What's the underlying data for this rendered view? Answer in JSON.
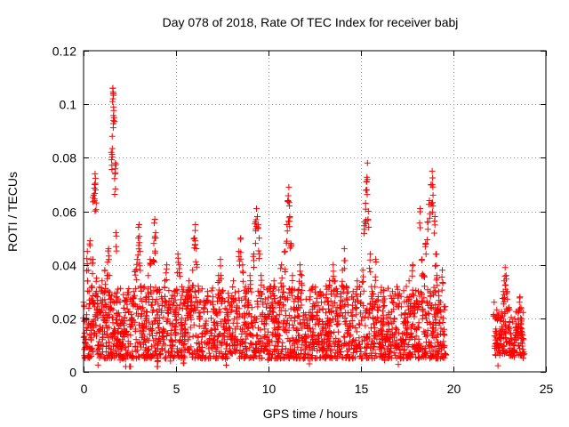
{
  "chart_data": {
    "type": "scatter",
    "title": "Day 078 of 2018, Rate Of TEC Index for receiver babj",
    "xlabel": "GPS time / hours",
    "ylabel": "ROTI / TECUs",
    "xlim": [
      0,
      25
    ],
    "ylim": [
      0,
      0.12
    ],
    "xticks": [
      0,
      5,
      10,
      15,
      20,
      25
    ],
    "xtick_labels": [
      "0",
      "5",
      "10",
      "15",
      "20",
      "25"
    ],
    "yticks": [
      0,
      0.02,
      0.04,
      0.06,
      0.08,
      0.1,
      0.12
    ],
    "ytick_labels": [
      "0",
      "0.02",
      "0.04",
      "0.06",
      "0.08",
      "0.1",
      "0.12"
    ],
    "grid": true,
    "marker": "+",
    "color": "#ff0000",
    "series": [
      {
        "name": "ROTI",
        "points": [
          [
            0.0,
            0.026
          ],
          [
            0.1,
            0.012
          ],
          [
            0.15,
            0.02
          ],
          [
            0.2,
            0.045
          ],
          [
            0.25,
            0.038
          ],
          [
            0.3,
            0.03
          ],
          [
            0.35,
            0.049
          ],
          [
            0.4,
            0.018
          ],
          [
            0.45,
            0.032
          ],
          [
            0.5,
            0.042
          ],
          [
            0.55,
            0.066
          ],
          [
            0.6,
            0.07
          ],
          [
            0.62,
            0.074
          ],
          [
            0.65,
            0.068
          ],
          [
            0.7,
            0.035
          ],
          [
            0.75,
            0.028
          ],
          [
            0.8,
            0.01
          ],
          [
            0.85,
            0.022
          ],
          [
            0.9,
            0.016
          ],
          [
            0.95,
            0.03
          ],
          [
            1.0,
            0.034
          ],
          [
            1.05,
            0.013
          ],
          [
            1.1,
            0.024
          ],
          [
            1.15,
            0.038
          ],
          [
            1.2,
            0.03
          ],
          [
            1.25,
            0.019
          ],
          [
            1.3,
            0.041
          ],
          [
            1.35,
            0.046
          ],
          [
            1.4,
            0.036
          ],
          [
            1.45,
            0.026
          ],
          [
            1.5,
            0.082
          ],
          [
            1.55,
            0.088
          ],
          [
            1.58,
            0.106
          ],
          [
            1.6,
            0.104
          ],
          [
            1.62,
            0.099
          ],
          [
            1.65,
            0.095
          ],
          [
            1.7,
            0.074
          ],
          [
            1.72,
            0.078
          ],
          [
            1.75,
            0.052
          ],
          [
            1.8,
            0.028
          ],
          [
            1.85,
            0.015
          ],
          [
            1.9,
            0.022
          ],
          [
            1.95,
            0.011
          ],
          [
            2.0,
            0.018
          ],
          [
            2.1,
            0.012
          ],
          [
            2.2,
            0.02
          ],
          [
            2.3,
            0.008
          ],
          [
            2.4,
            0.014
          ],
          [
            2.5,
            0.006
          ],
          [
            2.6,
            0.02
          ],
          [
            2.7,
            0.03
          ],
          [
            2.8,
            0.038
          ],
          [
            2.9,
            0.042
          ],
          [
            2.95,
            0.05
          ],
          [
            3.0,
            0.055
          ],
          [
            3.05,
            0.045
          ],
          [
            3.1,
            0.032
          ],
          [
            3.2,
            0.024
          ],
          [
            3.3,
            0.018
          ],
          [
            3.4,
            0.028
          ],
          [
            3.5,
            0.036
          ],
          [
            3.6,
            0.042
          ],
          [
            3.7,
            0.025
          ],
          [
            3.8,
            0.048
          ],
          [
            3.85,
            0.057
          ],
          [
            3.9,
            0.052
          ],
          [
            3.95,
            0.03
          ],
          [
            4.0,
            0.004
          ],
          [
            4.05,
            0.012
          ],
          [
            4.1,
            0.02
          ],
          [
            4.2,
            0.028
          ],
          [
            4.3,
            0.016
          ],
          [
            4.4,
            0.034
          ],
          [
            4.5,
            0.04
          ],
          [
            4.6,
            0.025
          ],
          [
            4.7,
            0.012
          ],
          [
            4.8,
            0.018
          ],
          [
            4.9,
            0.03
          ],
          [
            5.0,
            0.022
          ],
          [
            5.1,
            0.044
          ],
          [
            5.2,
            0.04
          ],
          [
            5.3,
            0.02
          ],
          [
            5.4,
            0.01
          ],
          [
            5.5,
            0.016
          ],
          [
            5.6,
            0.028
          ],
          [
            5.7,
            0.034
          ],
          [
            5.8,
            0.026
          ],
          [
            5.9,
            0.038
          ],
          [
            6.0,
            0.05
          ],
          [
            6.05,
            0.055
          ],
          [
            6.1,
            0.046
          ],
          [
            6.2,
            0.032
          ],
          [
            6.3,
            0.022
          ],
          [
            6.4,
            0.014
          ],
          [
            6.5,
            0.024
          ],
          [
            6.6,
            0.018
          ],
          [
            6.7,
            0.03
          ],
          [
            6.8,
            0.012
          ],
          [
            6.9,
            0.02
          ],
          [
            7.0,
            0.028
          ],
          [
            7.1,
            0.016
          ],
          [
            7.2,
            0.022
          ],
          [
            7.3,
            0.036
          ],
          [
            7.4,
            0.042
          ],
          [
            7.5,
            0.03
          ],
          [
            7.6,
            0.018
          ],
          [
            7.7,
            0.01
          ],
          [
            7.8,
            0.022
          ],
          [
            7.9,
            0.014
          ],
          [
            8.0,
            0.026
          ],
          [
            8.1,
            0.034
          ],
          [
            8.2,
            0.016
          ],
          [
            8.3,
            0.024
          ],
          [
            8.4,
            0.045
          ],
          [
            8.5,
            0.05
          ],
          [
            8.6,
            0.04
          ],
          [
            8.7,
            0.028
          ],
          [
            8.8,
            0.018
          ],
          [
            8.9,
            0.03
          ],
          [
            9.0,
            0.036
          ],
          [
            9.1,
            0.024
          ],
          [
            9.2,
            0.044
          ],
          [
            9.3,
            0.056
          ],
          [
            9.35,
            0.061
          ],
          [
            9.4,
            0.058
          ],
          [
            9.5,
            0.05
          ],
          [
            9.6,
            0.036
          ],
          [
            9.7,
            0.026
          ],
          [
            9.8,
            0.016
          ],
          [
            9.9,
            0.02
          ],
          [
            10.0,
            0.012
          ],
          [
            10.1,
            0.03
          ],
          [
            10.2,
            0.026
          ],
          [
            10.3,
            0.034
          ],
          [
            10.4,
            0.02
          ],
          [
            10.5,
            0.014
          ],
          [
            10.6,
            0.024
          ],
          [
            10.7,
            0.04
          ],
          [
            10.8,
            0.032
          ],
          [
            10.9,
            0.045
          ],
          [
            11.0,
            0.055
          ],
          [
            11.05,
            0.064
          ],
          [
            11.1,
            0.069
          ],
          [
            11.15,
            0.058
          ],
          [
            11.2,
            0.048
          ],
          [
            11.3,
            0.036
          ],
          [
            11.4,
            0.024
          ],
          [
            11.5,
            0.016
          ],
          [
            11.6,
            0.028
          ],
          [
            11.7,
            0.04
          ],
          [
            11.8,
            0.036
          ],
          [
            11.9,
            0.022
          ],
          [
            12.0,
            0.014
          ],
          [
            12.1,
            0.018
          ],
          [
            12.2,
            0.01
          ],
          [
            12.3,
            0.022
          ],
          [
            12.4,
            0.016
          ],
          [
            12.5,
            0.012
          ],
          [
            12.6,
            0.026
          ],
          [
            12.7,
            0.018
          ],
          [
            12.8,
            0.03
          ],
          [
            12.9,
            0.016
          ],
          [
            13.0,
            0.012
          ],
          [
            13.1,
            0.022
          ],
          [
            13.2,
            0.02
          ],
          [
            13.3,
            0.034
          ],
          [
            13.4,
            0.03
          ],
          [
            13.5,
            0.04
          ],
          [
            13.6,
            0.034
          ],
          [
            13.7,
            0.024
          ],
          [
            13.8,
            0.018
          ],
          [
            13.9,
            0.028
          ],
          [
            14.0,
            0.038
          ],
          [
            14.1,
            0.046
          ],
          [
            14.2,
            0.032
          ],
          [
            14.3,
            0.022
          ],
          [
            14.4,
            0.018
          ],
          [
            14.5,
            0.028
          ],
          [
            14.6,
            0.012
          ],
          [
            14.7,
            0.024
          ],
          [
            14.8,
            0.034
          ],
          [
            14.9,
            0.018
          ],
          [
            15.0,
            0.026
          ],
          [
            15.1,
            0.038
          ],
          [
            15.2,
            0.056
          ],
          [
            15.25,
            0.063
          ],
          [
            15.3,
            0.071
          ],
          [
            15.35,
            0.078
          ],
          [
            15.4,
            0.06
          ],
          [
            15.5,
            0.044
          ],
          [
            15.6,
            0.03
          ],
          [
            15.7,
            0.018
          ],
          [
            15.8,
            0.042
          ],
          [
            15.9,
            0.024
          ],
          [
            16.0,
            0.014
          ],
          [
            16.1,
            0.02
          ],
          [
            16.2,
            0.026
          ],
          [
            16.3,
            0.012
          ],
          [
            16.4,
            0.018
          ],
          [
            16.5,
            0.022
          ],
          [
            16.6,
            0.014
          ],
          [
            16.7,
            0.03
          ],
          [
            16.8,
            0.02
          ],
          [
            16.9,
            0.016
          ],
          [
            17.0,
            0.01
          ],
          [
            17.1,
            0.008
          ],
          [
            17.2,
            0.012
          ],
          [
            17.3,
            0.018
          ],
          [
            17.4,
            0.022
          ],
          [
            17.5,
            0.016
          ],
          [
            17.6,
            0.034
          ],
          [
            17.7,
            0.028
          ],
          [
            17.8,
            0.04
          ],
          [
            17.9,
            0.024
          ],
          [
            18.0,
            0.016
          ],
          [
            18.1,
            0.03
          ],
          [
            18.2,
            0.061
          ],
          [
            18.3,
            0.042
          ],
          [
            18.4,
            0.036
          ],
          [
            18.5,
            0.048
          ],
          [
            18.6,
            0.056
          ],
          [
            18.7,
            0.064
          ],
          [
            18.8,
            0.07
          ],
          [
            18.85,
            0.075
          ],
          [
            18.9,
            0.066
          ],
          [
            19.0,
            0.058
          ],
          [
            19.05,
            0.044
          ],
          [
            19.1,
            0.036
          ],
          [
            19.2,
            0.03
          ],
          [
            19.3,
            0.026
          ],
          [
            19.4,
            0.038
          ],
          [
            19.45,
            0.02
          ],
          [
            19.5,
            0.014
          ],
          [
            22.2,
            0.026
          ],
          [
            22.3,
            0.016
          ],
          [
            22.4,
            0.01
          ],
          [
            22.5,
            0.014
          ],
          [
            22.6,
            0.02
          ],
          [
            22.7,
            0.03
          ],
          [
            22.75,
            0.034
          ],
          [
            22.8,
            0.039
          ],
          [
            22.85,
            0.036
          ],
          [
            22.9,
            0.03
          ],
          [
            23.0,
            0.024
          ],
          [
            23.1,
            0.014
          ],
          [
            23.2,
            0.008
          ],
          [
            23.3,
            0.012
          ],
          [
            23.4,
            0.018
          ],
          [
            23.5,
            0.022
          ],
          [
            23.6,
            0.028
          ],
          [
            23.65,
            0.024
          ],
          [
            23.7,
            0.016
          ],
          [
            23.8,
            0.012
          ]
        ]
      }
    ],
    "noise_bands": [
      {
        "x_start": 0.0,
        "x_end": 19.6,
        "y_low": 0.005,
        "y_high": 0.032
      },
      {
        "x_start": 22.2,
        "x_end": 23.8,
        "y_low": 0.006,
        "y_high": 0.024
      }
    ]
  }
}
